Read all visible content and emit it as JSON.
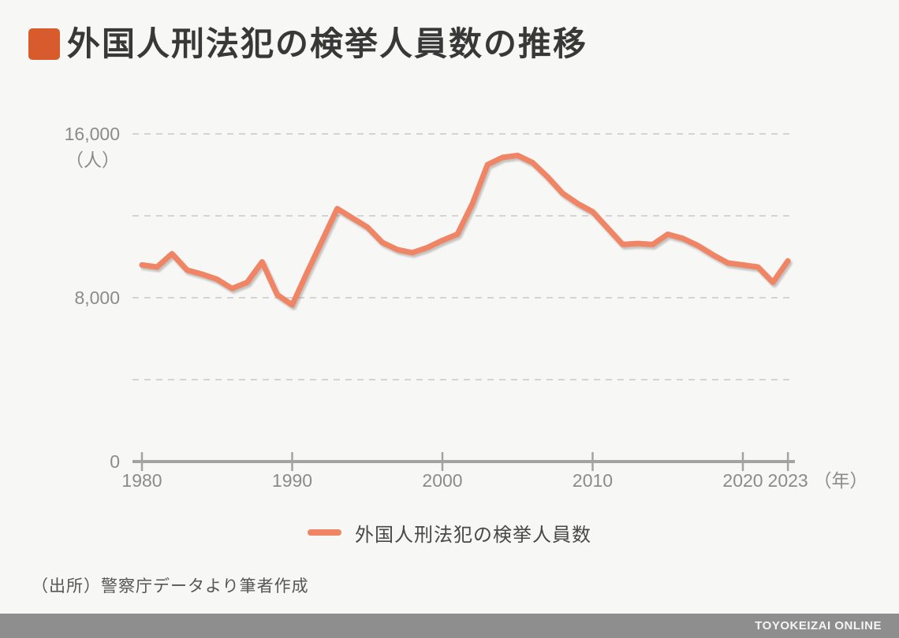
{
  "page": {
    "background_color": "#f7f7f6",
    "title": "外国人刑法犯の検挙人員数の推移",
    "title_bullet_color": "#d85b2e",
    "source": "（出所）警察庁データより筆者作成",
    "footer_brand": "TOYOKEIZAI ONLINE",
    "footer_bar_color": "#8e8e8e"
  },
  "legend": {
    "label": "外国人刑法犯の検挙人員数",
    "swatch_color": "#ef8565"
  },
  "chart_data": {
    "type": "line",
    "title": "外国人刑法犯の検挙人員数の推移",
    "ylabel_unit": "（人）",
    "xlabel_unit": "（年）",
    "ylim": [
      0,
      16000
    ],
    "xlim": [
      1980,
      2023
    ],
    "grid": "horizontal dashed",
    "gridline_values": [
      4000,
      8000,
      12000,
      16000
    ],
    "gridline_color": "#d4d4d4",
    "axis_color": "#a3a3a3",
    "y_tick_labels": [
      {
        "label": "16,000",
        "value": 16000
      },
      {
        "label": "8,000",
        "value": 8000
      },
      {
        "label": "0",
        "value": 0
      }
    ],
    "x_tick_years": [
      {
        "label": "1980",
        "year": 1980
      },
      {
        "label": "1990",
        "year": 1990
      },
      {
        "label": "2000",
        "year": 2000
      },
      {
        "label": "2010",
        "year": 2010
      },
      {
        "label": "2020",
        "year": 2020
      },
      {
        "label": "2023",
        "year": 2023
      }
    ],
    "legend_position": "bottom-center",
    "series": [
      {
        "name": "外国人刑法犯の検挙人員数",
        "color": "#ef8565",
        "x": [
          1980,
          1981,
          1982,
          1983,
          1984,
          1985,
          1986,
          1987,
          1988,
          1989,
          1990,
          1991,
          1992,
          1993,
          1994,
          1995,
          1996,
          1997,
          1998,
          1999,
          2000,
          2001,
          2002,
          2003,
          2004,
          2005,
          2006,
          2007,
          2008,
          2009,
          2010,
          2011,
          2012,
          2013,
          2014,
          2015,
          2016,
          2017,
          2018,
          2019,
          2020,
          2021,
          2022,
          2023
        ],
        "values": [
          9600,
          9500,
          10150,
          9350,
          9150,
          8900,
          8450,
          8750,
          9750,
          8150,
          7650,
          9250,
          10800,
          12350,
          11900,
          11450,
          10700,
          10350,
          10200,
          10450,
          10800,
          11100,
          12600,
          14500,
          14850,
          14950,
          14600,
          13900,
          13100,
          12600,
          12200,
          11400,
          10600,
          10650,
          10600,
          11100,
          10900,
          10550,
          10100,
          9700,
          9600,
          9500,
          8750,
          9800
        ]
      }
    ]
  }
}
